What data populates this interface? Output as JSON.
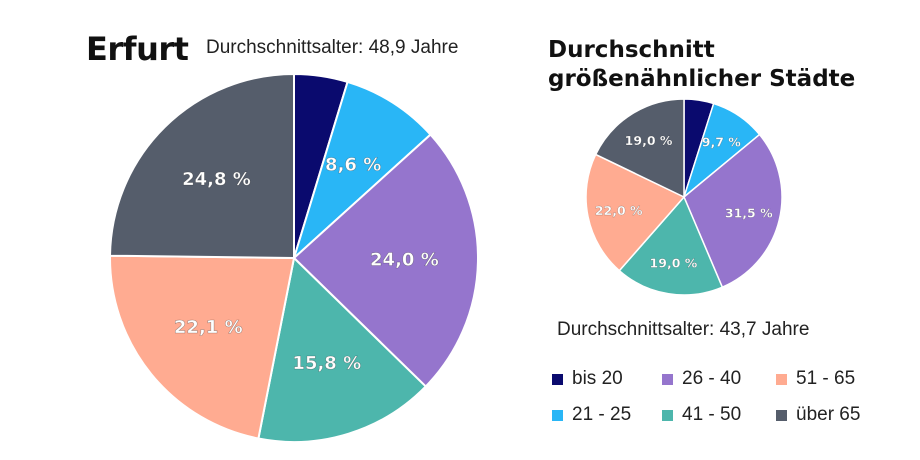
{
  "chart_data": [
    {
      "type": "pie",
      "title": "Erfurt",
      "subtitle": "Durchschnittsalter:  48,9 Jahre",
      "categories": [
        "bis 20",
        "21 - 25",
        "26 - 40",
        "41 - 50",
        "51 - 65",
        "über 65"
      ],
      "values": [
        4.7,
        8.6,
        24.0,
        15.8,
        22.1,
        24.8
      ],
      "data_labels": [
        "",
        "8,6 %",
        "24,0 %",
        "15,8 %",
        "22,1 %",
        "24,8 %"
      ],
      "colors": [
        "#0a0a6e",
        "#29b6f6",
        "#9575cd",
        "#4db6ac",
        "#ffab91",
        "#555d6b"
      ],
      "start_angle_deg": 0,
      "direction": "clockwise"
    },
    {
      "type": "pie",
      "title": "Durchschnitt größenähnlicher Städte",
      "subtitle": "Durchschnittsalter:  43,7 Jahre",
      "categories": [
        "bis 20",
        "21 - 25",
        "26 - 40",
        "41 - 50",
        "51 - 65",
        "über 65"
      ],
      "values": [
        5.2,
        9.7,
        31.5,
        19.0,
        22.0,
        19.0
      ],
      "data_labels": [
        "",
        "9,7 %",
        "31,5 %",
        "19,0 %",
        "22,0 %",
        "19,0 %"
      ],
      "colors": [
        "#0a0a6e",
        "#29b6f6",
        "#9575cd",
        "#4db6ac",
        "#ffab91",
        "#555d6b"
      ],
      "start_angle_deg": 0,
      "direction": "clockwise"
    }
  ],
  "legend": {
    "placement": "bottom-right",
    "items": [
      {
        "label": "bis 20",
        "color": "#0a0a6e"
      },
      {
        "label": "26 - 40",
        "color": "#9575cd"
      },
      {
        "label": "51 - 65",
        "color": "#ffab91"
      },
      {
        "label": "21 - 25",
        "color": "#29b6f6"
      },
      {
        "label": "41 - 50",
        "color": "#4db6ac"
      },
      {
        "label": "über 65",
        "color": "#555d6b"
      }
    ]
  }
}
